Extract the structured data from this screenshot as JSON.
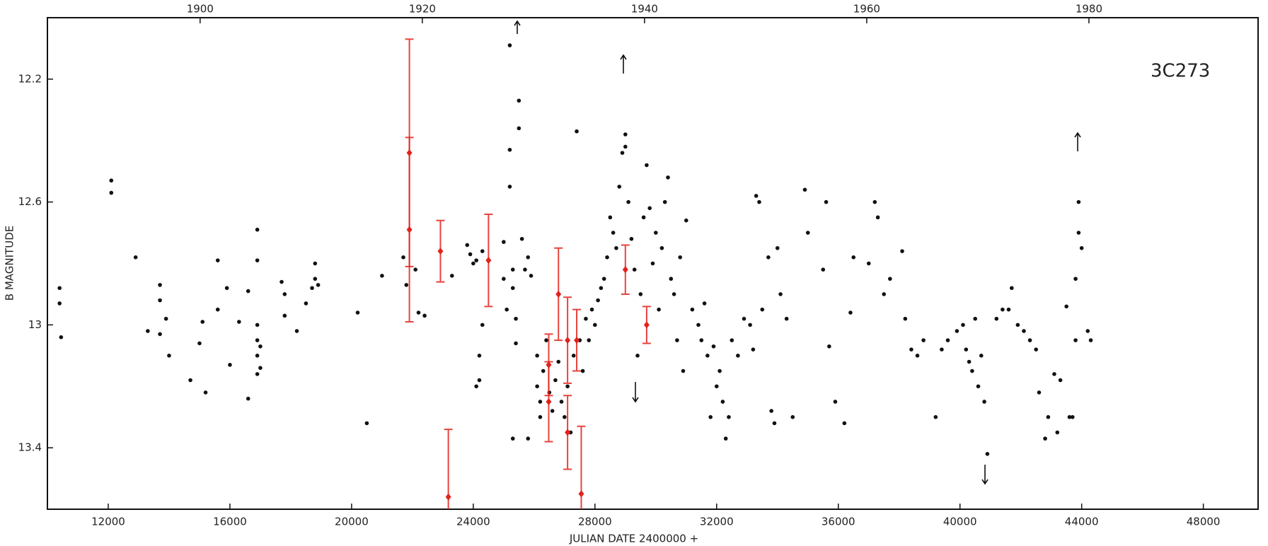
{
  "chart_data": {
    "type": "scatter",
    "annotation": "3C273",
    "x_label": "JULIAN DATE 2400000 +",
    "y_label": "B MAGNITUDE",
    "xlim": [
      10000,
      49800
    ],
    "ylim": [
      12.0,
      13.6
    ],
    "y_inverted": true,
    "xticks": [
      12000,
      16000,
      20000,
      24000,
      28000,
      32000,
      36000,
      40000,
      44000,
      48000
    ],
    "yticks": [
      12.2,
      12.6,
      13.0,
      13.4
    ],
    "x2ticks": [
      {
        "value": 15020,
        "label": "1900"
      },
      {
        "value": 22325,
        "label": "1920"
      },
      {
        "value": 29630,
        "label": "1940"
      },
      {
        "value": 36934,
        "label": "1960"
      },
      {
        "value": 44239,
        "label": "1980"
      }
    ],
    "series": [
      {
        "color": "#111111",
        "x": [
          10400,
          10400,
          10450,
          12100,
          12100,
          12900,
          13300,
          13700,
          13700,
          13700,
          13900,
          14000,
          14700,
          15000,
          15100,
          15200,
          15600,
          15600,
          15900,
          16000,
          16300,
          16600,
          16600,
          16900,
          16900,
          16900,
          16900,
          16900,
          16900,
          17000,
          17000,
          17700,
          17800,
          17800,
          18200,
          18500,
          18700,
          18800,
          18800,
          18900,
          20200,
          20500,
          21000,
          21700,
          21800,
          22100,
          22200,
          22400,
          23300,
          23800,
          23900,
          24000,
          24100,
          24100,
          24200,
          24200,
          24300,
          24300,
          25000,
          25000,
          25100,
          25200,
          25200,
          25200,
          25300,
          25300,
          25400,
          25400,
          25500,
          25500,
          25600,
          25700,
          25800,
          25900,
          25800,
          25300,
          26100,
          26100,
          26200,
          26200,
          26300,
          26400,
          26500,
          26600,
          26700,
          26800,
          26900,
          27000,
          27100,
          27200,
          27300,
          27400,
          27500,
          27600,
          27700,
          27800,
          27900,
          28000,
          28100,
          28200,
          28300,
          28400,
          28500,
          28600,
          28700,
          28800,
          28900,
          29000,
          29000,
          29100,
          29200,
          29300,
          29400,
          29500,
          29600,
          29700,
          29800,
          29900,
          30000,
          30100,
          30200,
          30300,
          30400,
          30500,
          30600,
          30700,
          30800,
          30900,
          31000,
          31200,
          31400,
          31500,
          31600,
          31700,
          31800,
          31900,
          32000,
          32100,
          32200,
          32300,
          32400,
          32500,
          32700,
          32900,
          33100,
          33200,
          33300,
          33400,
          33500,
          33700,
          33800,
          33900,
          34000,
          34100,
          34300,
          34500,
          34900,
          35000,
          35500,
          35600,
          35700,
          35900,
          36200,
          36400,
          36500,
          37000,
          37200,
          37300,
          37500,
          37700,
          38100,
          38200,
          38400,
          38600,
          38800,
          39200,
          39400,
          39600,
          39900,
          40100,
          40200,
          40300,
          40400,
          40500,
          40600,
          40700,
          40800,
          40900,
          41200,
          41400,
          41600,
          41700,
          41900,
          42100,
          42300,
          42500,
          42600,
          42800,
          42900,
          43100,
          43200,
          43300,
          43500,
          43600,
          43700,
          43800,
          43800,
          43900,
          43900,
          44000,
          44200,
          44300
        ],
        "values": [
          12.88,
          12.93,
          13.04,
          12.53,
          12.57,
          12.78,
          13.02,
          12.87,
          12.92,
          13.03,
          12.98,
          13.1,
          13.18,
          13.06,
          12.99,
          13.22,
          12.95,
          12.79,
          12.88,
          13.13,
          12.99,
          12.89,
          13.24,
          12.69,
          12.79,
          13.0,
          13.05,
          13.1,
          13.16,
          13.07,
          13.14,
          12.86,
          12.97,
          12.9,
          13.02,
          12.93,
          12.88,
          12.8,
          12.85,
          12.87,
          12.96,
          13.32,
          12.84,
          12.78,
          12.87,
          12.82,
          12.96,
          12.97,
          12.84,
          12.74,
          12.77,
          12.8,
          12.79,
          13.2,
          13.18,
          13.1,
          13.0,
          12.76,
          12.73,
          12.85,
          12.95,
          12.09,
          12.55,
          12.43,
          12.82,
          12.88,
          12.98,
          13.06,
          12.27,
          12.36,
          12.72,
          12.82,
          12.78,
          12.84,
          13.37,
          13.37,
          13.1,
          13.2,
          13.25,
          13.3,
          13.15,
          13.05,
          13.22,
          13.28,
          13.18,
          13.12,
          13.25,
          13.3,
          13.2,
          13.35,
          13.1,
          12.37,
          13.05,
          13.15,
          12.98,
          13.05,
          12.95,
          13.0,
          12.92,
          12.88,
          12.85,
          12.78,
          12.65,
          12.7,
          12.75,
          12.55,
          12.44,
          12.42,
          12.38,
          12.6,
          12.72,
          12.82,
          13.1,
          12.9,
          12.65,
          12.48,
          12.62,
          12.8,
          12.7,
          12.95,
          12.75,
          12.6,
          12.52,
          12.85,
          12.9,
          13.05,
          12.78,
          13.15,
          12.66,
          12.95,
          13.0,
          13.05,
          12.93,
          13.1,
          13.3,
          13.07,
          13.2,
          13.15,
          13.25,
          13.37,
          13.3,
          13.05,
          13.1,
          12.98,
          13.0,
          13.08,
          12.58,
          12.6,
          12.95,
          12.78,
          13.28,
          13.32,
          12.75,
          12.9,
          12.98,
          13.3,
          12.56,
          12.7,
          12.82,
          12.6,
          13.07,
          13.25,
          13.32,
          12.96,
          12.78,
          12.8,
          12.6,
          12.65,
          12.9,
          12.85,
          12.76,
          12.98,
          13.08,
          13.1,
          13.05,
          13.3,
          13.08,
          13.05,
          13.02,
          13.0,
          13.08,
          13.12,
          13.15,
          12.98,
          13.2,
          13.1,
          13.25,
          13.42,
          12.98,
          12.95,
          12.95,
          12.88,
          13.0,
          13.02,
          13.05,
          13.08,
          13.22,
          13.37,
          13.3,
          13.16,
          13.35,
          13.18,
          12.94,
          13.3,
          13.3,
          12.85,
          13.05,
          12.7,
          12.6,
          12.75,
          13.02,
          13.05
        ]
      },
      {
        "color": "#e3221c",
        "x": [
          21900,
          21900,
          22920,
          24500,
          23180,
          26480,
          26480,
          26800,
          27100,
          27100,
          27400,
          27550,
          29000,
          29700
        ],
        "values": [
          12.44,
          12.69,
          12.76,
          12.79,
          13.56,
          13.13,
          13.25,
          12.9,
          13.05,
          13.35,
          13.05,
          13.55,
          12.82,
          13.0
        ],
        "errors": [
          0.37,
          0.3,
          0.1,
          0.15,
          0.22,
          0.1,
          0.13,
          0.15,
          0.14,
          0.12,
          0.1,
          0.22,
          0.08,
          0.06
        ]
      }
    ]
  }
}
